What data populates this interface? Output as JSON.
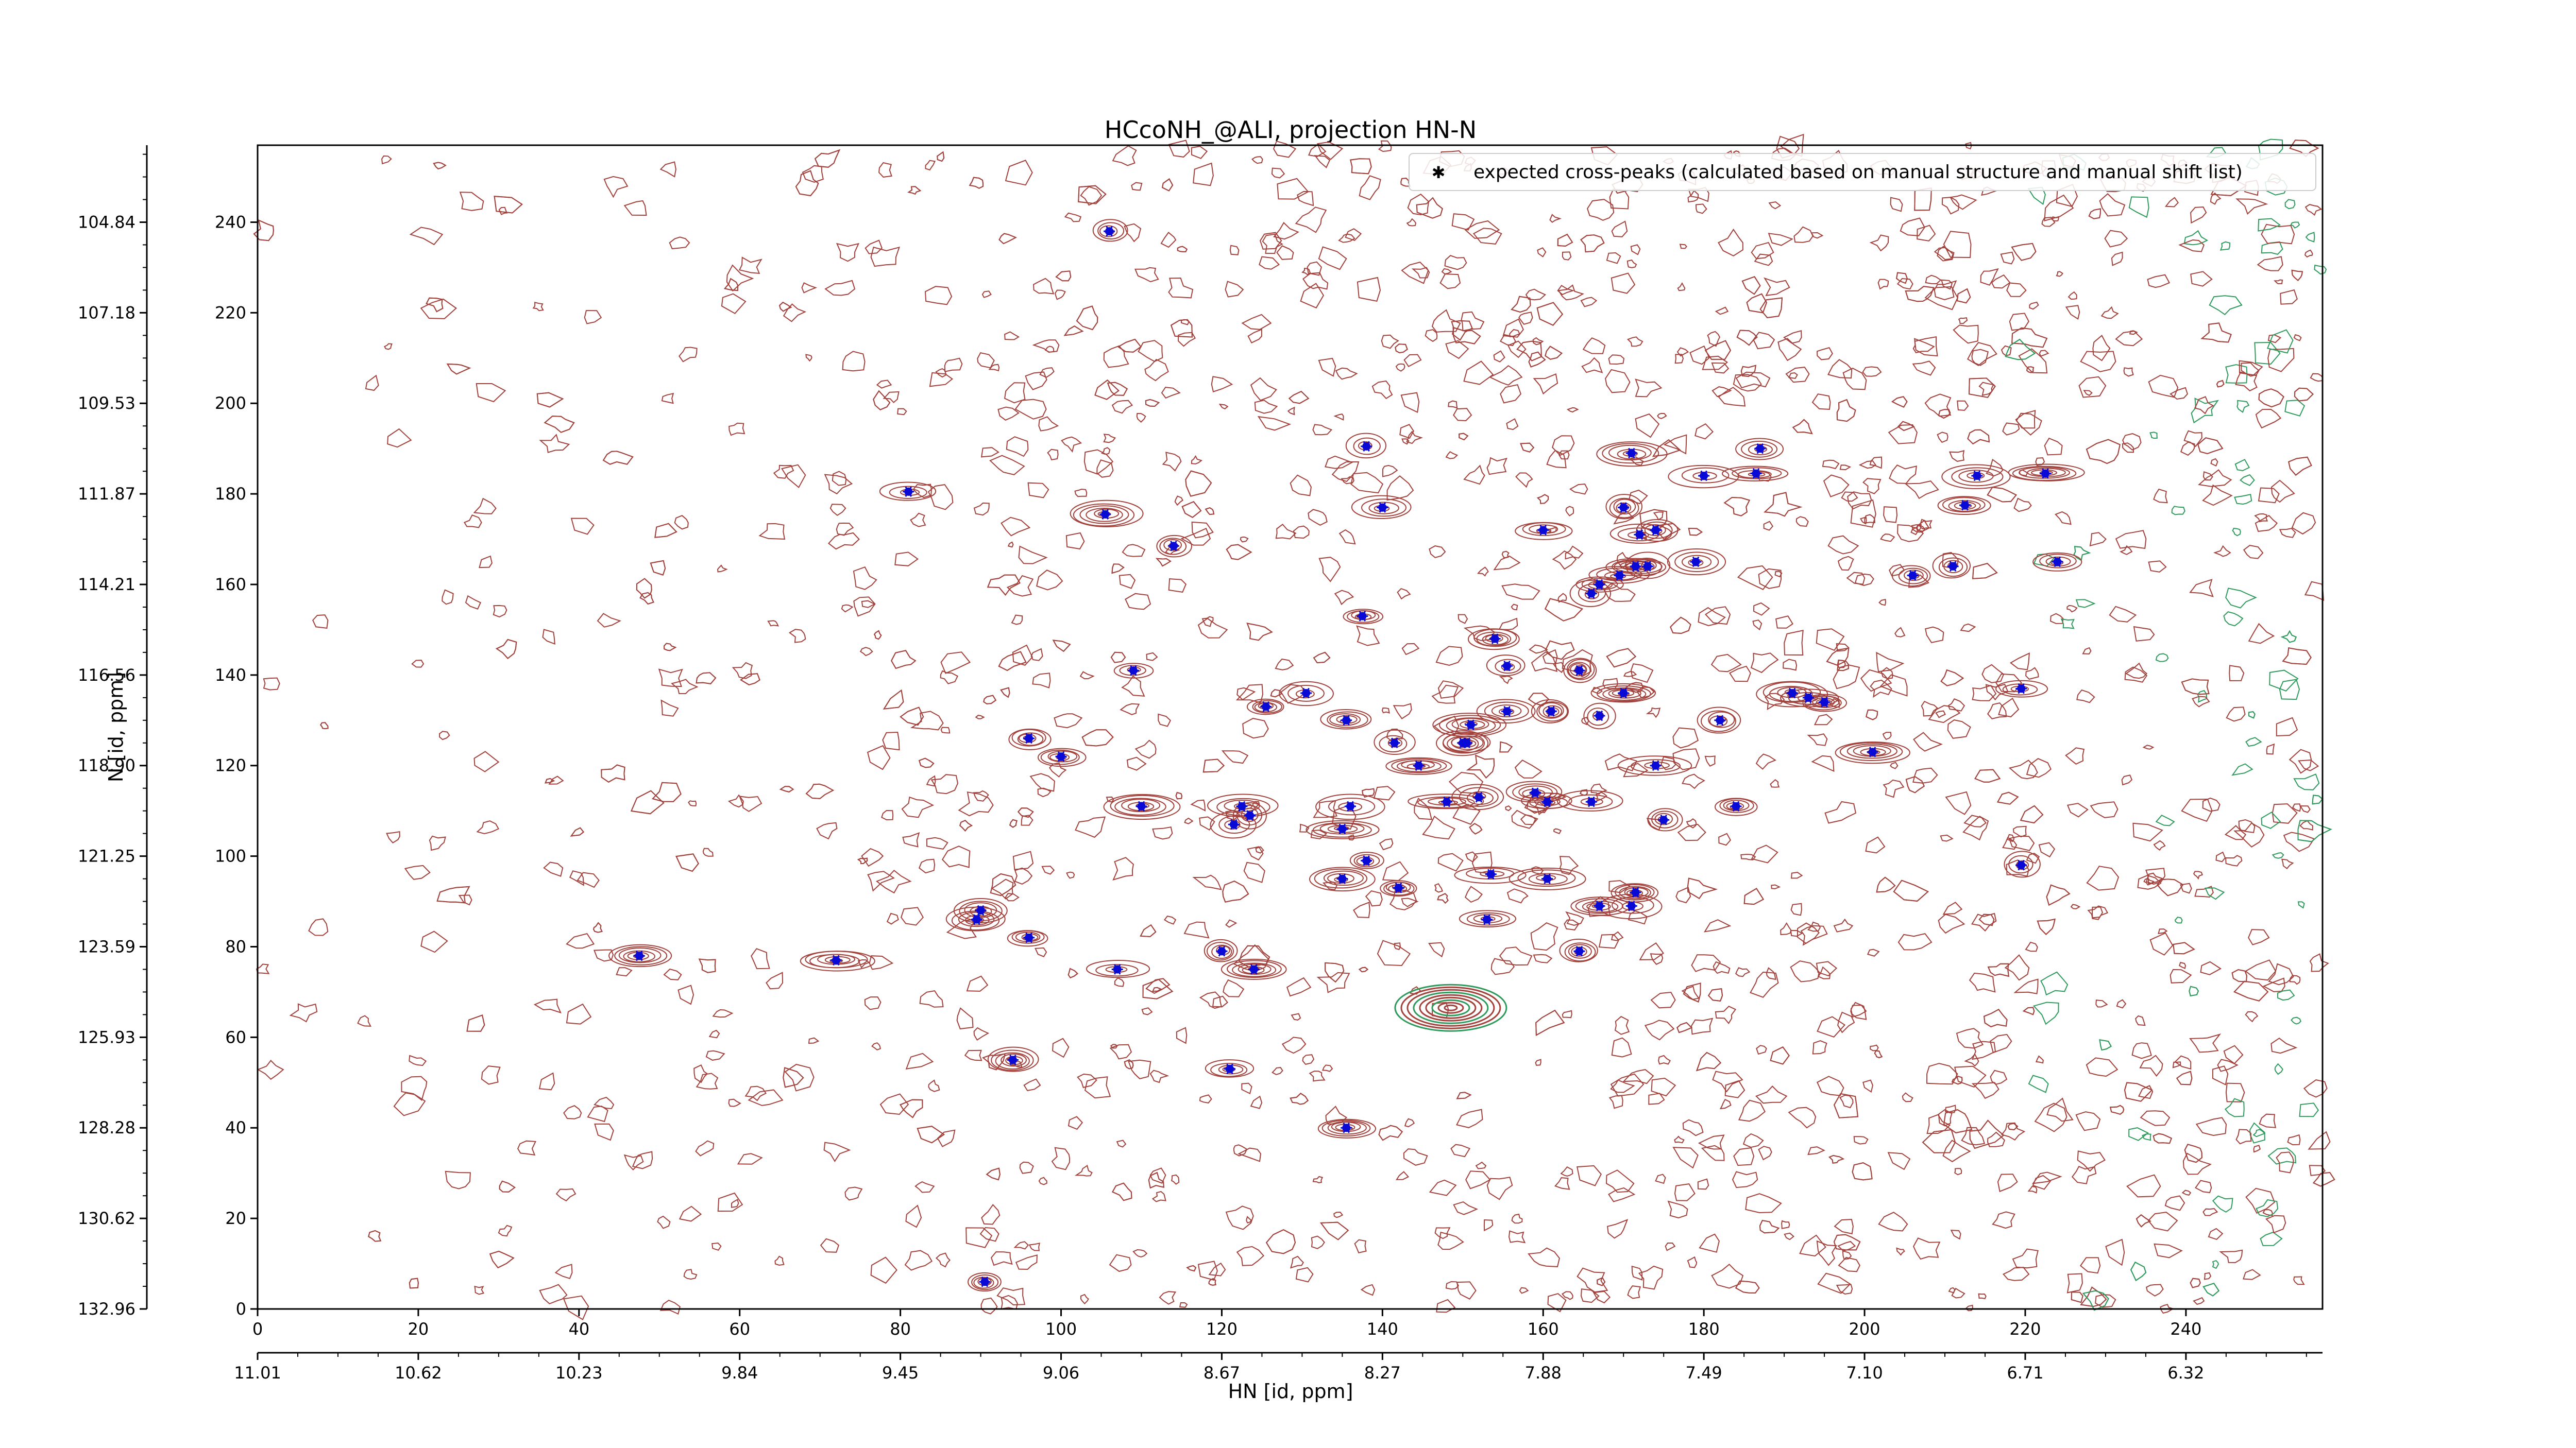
{
  "chart_data": {
    "type": "scatter",
    "title": "HCcoNH_@ALI, projection HN-N",
    "xlabel": "HN [id, ppm]",
    "ylabel": "N [id, ppm]",
    "xlim": [
      0,
      257
    ],
    "ylim": [
      0,
      257
    ],
    "x_ticks": [
      0,
      20,
      40,
      60,
      80,
      100,
      120,
      140,
      160,
      180,
      200,
      220,
      240
    ],
    "y_ticks": [
      0,
      20,
      40,
      60,
      80,
      100,
      120,
      140,
      160,
      180,
      200,
      220,
      240
    ],
    "x_ppm_tick_labels": [
      "11.01",
      "10.62",
      "10.23",
      "9.84",
      "9.45",
      "9.06",
      "8.67",
      "8.27",
      "7.88",
      "7.49",
      "7.10",
      "6.71",
      "6.32"
    ],
    "y_ppm_tick_labels": [
      "132.96",
      "130.62",
      "128.28",
      "125.93",
      "123.59",
      "121.25",
      "118.90",
      "116.56",
      "114.21",
      "111.87",
      "109.53",
      "107.18",
      "104.84"
    ],
    "grid": false,
    "legend_position": "top-right",
    "colors": {
      "peak_marker": "#0a0ad6",
      "contour_positive": "#a3423c",
      "contour_negative": "#2e9b5d"
    },
    "series": [
      {
        "name": "expected cross-peaks (calculated based on manual structure and manual shift list)",
        "points": [
          [
            106.0,
            238.0
          ],
          [
            81.0,
            180.5
          ],
          [
            105.5,
            175.5
          ],
          [
            114.0,
            168.5
          ],
          [
            138.0,
            190.5
          ],
          [
            140.0,
            177.0
          ],
          [
            171.0,
            189.0
          ],
          [
            180.0,
            184.0
          ],
          [
            186.5,
            184.5
          ],
          [
            187.0,
            190.0
          ],
          [
            170.0,
            177.0
          ],
          [
            160.0,
            172.0
          ],
          [
            172.0,
            171.0
          ],
          [
            174.0,
            172.0
          ],
          [
            173.0,
            164.0
          ],
          [
            171.5,
            164.0
          ],
          [
            169.5,
            162.0
          ],
          [
            167.0,
            160.0
          ],
          [
            166.0,
            158.0
          ],
          [
            179.0,
            165.0
          ],
          [
            206.0,
            162.0
          ],
          [
            211.0,
            164.0
          ],
          [
            214.0,
            184.0
          ],
          [
            212.5,
            177.5
          ],
          [
            222.5,
            184.5
          ],
          [
            224.0,
            165.0
          ],
          [
            137.5,
            153.0
          ],
          [
            154.0,
            148.0
          ],
          [
            155.5,
            142.0
          ],
          [
            164.5,
            141.0
          ],
          [
            109.0,
            141.0
          ],
          [
            130.5,
            136.0
          ],
          [
            125.5,
            133.0
          ],
          [
            135.5,
            130.0
          ],
          [
            96.0,
            126.0
          ],
          [
            100.0,
            122.0
          ],
          [
            141.5,
            125.0
          ],
          [
            144.5,
            120.0
          ],
          [
            150.0,
            125.0
          ],
          [
            150.5,
            125.0
          ],
          [
            151.0,
            129.0
          ],
          [
            155.5,
            132.0
          ],
          [
            161.0,
            132.0
          ],
          [
            167.0,
            131.0
          ],
          [
            170.0,
            136.0
          ],
          [
            174.0,
            120.0
          ],
          [
            195.0,
            134.0
          ],
          [
            193.0,
            135.0
          ],
          [
            191.0,
            136.0
          ],
          [
            182.0,
            130.0
          ],
          [
            201.0,
            123.0
          ],
          [
            219.5,
            137.0
          ],
          [
            159.0,
            114.0
          ],
          [
            160.5,
            112.0
          ],
          [
            166.0,
            112.0
          ],
          [
            148.0,
            112.0
          ],
          [
            152.0,
            113.0
          ],
          [
            136.0,
            111.0
          ],
          [
            135.0,
            106.0
          ],
          [
            110.0,
            111.0
          ],
          [
            123.5,
            109.0
          ],
          [
            122.5,
            111.0
          ],
          [
            121.5,
            107.0
          ],
          [
            138.0,
            99.0
          ],
          [
            153.5,
            96.0
          ],
          [
            160.5,
            95.0
          ],
          [
            175.0,
            108.0
          ],
          [
            184.0,
            111.0
          ],
          [
            219.5,
            98.0
          ],
          [
            135.0,
            95.0
          ],
          [
            142.0,
            93.0
          ],
          [
            167.0,
            89.0
          ],
          [
            171.0,
            89.0
          ],
          [
            171.5,
            92.0
          ],
          [
            153.0,
            86.0
          ],
          [
            90.0,
            88.0
          ],
          [
            89.5,
            86.0
          ],
          [
            96.0,
            82.0
          ],
          [
            47.5,
            78.0
          ],
          [
            72.0,
            77.0
          ],
          [
            107.0,
            75.0
          ],
          [
            120.0,
            79.0
          ],
          [
            124.0,
            75.0
          ],
          [
            164.5,
            79.0
          ],
          [
            94.0,
            55.0
          ],
          [
            121.0,
            53.0
          ],
          [
            135.5,
            40.0
          ],
          [
            90.5,
            6.0
          ]
        ]
      }
    ]
  }
}
